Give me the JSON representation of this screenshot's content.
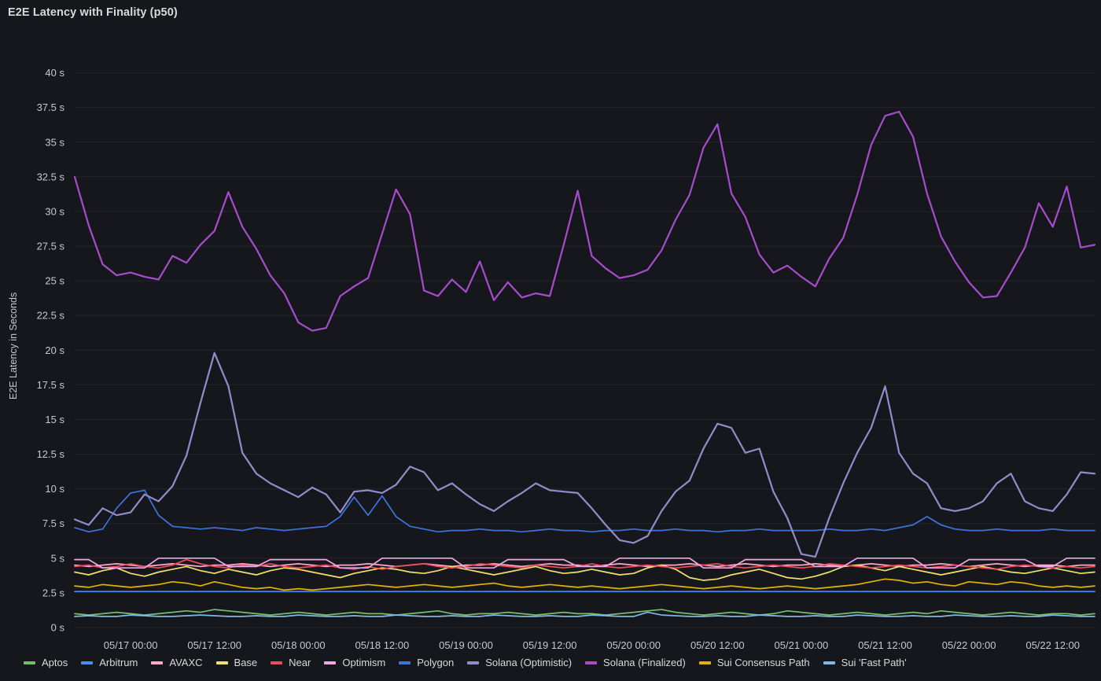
{
  "header": {
    "title": "E2E Latency with Finality (p50)"
  },
  "colors": {
    "background": "#16171d",
    "title_text": "#d8d9da",
    "axis_text": "#c3c8d2",
    "grid": "rgba(204,204,220,0.08)",
    "legend_text": "#d8d9da"
  },
  "chart_data": {
    "type": "line",
    "title": "E2E Latency with Finality (p50)",
    "xlabel": "",
    "ylabel": "E2E Latency in Seconds",
    "ylim": [
      0,
      41
    ],
    "grid": "horizontal-only",
    "legend_position": "bottom",
    "yticks": [
      {
        "value": 0,
        "label": "0 s"
      },
      {
        "value": 2.5,
        "label": "2.5 s"
      },
      {
        "value": 5,
        "label": "5 s"
      },
      {
        "value": 7.5,
        "label": "7.5 s"
      },
      {
        "value": 10,
        "label": "10 s"
      },
      {
        "value": 12.5,
        "label": "12.5 s"
      },
      {
        "value": 15,
        "label": "15 s"
      },
      {
        "value": 17.5,
        "label": "17.5 s"
      },
      {
        "value": 20,
        "label": "20 s"
      },
      {
        "value": 22.5,
        "label": "22.5 s"
      },
      {
        "value": 25,
        "label": "25 s"
      },
      {
        "value": 27.5,
        "label": "27.5 s"
      },
      {
        "value": 30,
        "label": "30 s"
      },
      {
        "value": 32.5,
        "label": "32.5 s"
      },
      {
        "value": 35,
        "label": "35 s"
      },
      {
        "value": 37.5,
        "label": "37.5 s"
      },
      {
        "value": 40,
        "label": "40 s"
      }
    ],
    "x": {
      "start_hour": 0,
      "step_hours": 2,
      "count": 74,
      "range_hours": [
        0,
        146
      ]
    },
    "xticks": [
      {
        "hour": 8,
        "label": "05/17 00:00"
      },
      {
        "hour": 20,
        "label": "05/17 12:00"
      },
      {
        "hour": 32,
        "label": "05/18 00:00"
      },
      {
        "hour": 44,
        "label": "05/18 12:00"
      },
      {
        "hour": 56,
        "label": "05/19 00:00"
      },
      {
        "hour": 68,
        "label": "05/19 12:00"
      },
      {
        "hour": 80,
        "label": "05/20 00:00"
      },
      {
        "hour": 92,
        "label": "05/20 12:00"
      },
      {
        "hour": 104,
        "label": "05/21 00:00"
      },
      {
        "hour": 116,
        "label": "05/21 12:00"
      },
      {
        "hour": 128,
        "label": "05/22 00:00"
      },
      {
        "hour": 140,
        "label": "05/22 12:00"
      }
    ],
    "series": [
      {
        "name": "Aptos",
        "color": "#73BF69",
        "values": [
          1.0,
          0.9,
          1.0,
          1.1,
          1.0,
          0.9,
          1.0,
          1.1,
          1.2,
          1.1,
          1.3,
          1.2,
          1.1,
          1.0,
          0.9,
          1.0,
          1.1,
          1.0,
          0.9,
          1.0,
          1.1,
          1.0,
          1.0,
          0.9,
          1.0,
          1.1,
          1.2,
          1.0,
          0.9,
          1.0,
          1.0,
          1.1,
          1.0,
          0.9,
          1.0,
          1.1,
          1.0,
          1.0,
          0.9,
          1.0,
          1.1,
          1.2,
          1.3,
          1.1,
          1.0,
          0.9,
          1.0,
          1.1,
          1.0,
          0.9,
          1.0,
          1.2,
          1.1,
          1.0,
          0.9,
          1.0,
          1.1,
          1.0,
          0.9,
          1.0,
          1.1,
          1.0,
          1.2,
          1.1,
          1.0,
          0.9,
          1.0,
          1.1,
          1.0,
          0.9,
          1.0,
          1.0,
          0.9,
          1.0
        ]
      },
      {
        "name": "Arbitrum",
        "color": "#4E8BF0",
        "values": [
          2.6,
          2.6,
          2.6,
          2.6,
          2.6,
          2.6,
          2.6,
          2.6,
          2.6,
          2.6,
          2.6,
          2.6,
          2.6,
          2.6,
          2.6,
          2.6,
          2.6,
          2.6,
          2.6,
          2.6,
          2.6,
          2.6,
          2.6,
          2.6,
          2.6,
          2.6,
          2.6,
          2.6,
          2.6,
          2.6,
          2.6,
          2.6,
          2.6,
          2.6,
          2.6,
          2.6,
          2.6,
          2.6,
          2.6,
          2.6,
          2.6,
          2.6,
          2.6,
          2.6,
          2.6,
          2.6,
          2.6,
          2.6,
          2.6,
          2.6,
          2.6,
          2.6,
          2.6,
          2.6,
          2.6,
          2.6,
          2.6,
          2.6,
          2.6,
          2.6,
          2.6,
          2.6,
          2.6,
          2.6,
          2.6,
          2.6,
          2.6,
          2.6,
          2.6,
          2.6,
          2.6,
          2.6,
          2.6,
          2.6
        ]
      },
      {
        "name": "AVAXC",
        "color": "#FFA8C9",
        "values": [
          4.5,
          4.4,
          4.5,
          4.6,
          4.5,
          4.4,
          4.5,
          4.6,
          4.5,
          4.4,
          4.5,
          4.5,
          4.6,
          4.5,
          4.4,
          4.5,
          4.6,
          4.5,
          4.4,
          4.5,
          4.5,
          4.6,
          4.5,
          4.4,
          4.5,
          4.6,
          4.5,
          4.4,
          4.5,
          4.5,
          4.6,
          4.5,
          4.4,
          4.5,
          4.6,
          4.5,
          4.5,
          4.4,
          4.5,
          4.6,
          4.5,
          4.4,
          4.5,
          4.5,
          4.6,
          4.5,
          4.4,
          4.5,
          4.6,
          4.5,
          4.4,
          4.5,
          4.5,
          4.6,
          4.5,
          4.4,
          4.5,
          4.6,
          4.5,
          4.4,
          4.5,
          4.5,
          4.6,
          4.5,
          4.4,
          4.5,
          4.6,
          4.5,
          4.4,
          4.5,
          4.5,
          4.4,
          4.5,
          4.5
        ]
      },
      {
        "name": "Base",
        "color": "#EFE36A",
        "values": [
          4.0,
          3.8,
          4.1,
          4.3,
          3.9,
          3.7,
          4.0,
          4.2,
          4.4,
          4.1,
          3.9,
          4.2,
          4.0,
          3.8,
          4.1,
          4.3,
          4.2,
          4.0,
          3.8,
          3.6,
          3.9,
          4.1,
          4.3,
          4.2,
          4.0,
          3.9,
          4.1,
          4.4,
          4.2,
          4.0,
          3.8,
          4.0,
          4.2,
          4.4,
          4.1,
          3.9,
          4.0,
          4.2,
          4.0,
          3.8,
          3.9,
          4.3,
          4.5,
          4.2,
          3.6,
          3.4,
          3.5,
          3.8,
          4.0,
          4.2,
          3.9,
          3.6,
          3.5,
          3.7,
          4.0,
          4.4,
          4.5,
          4.3,
          4.1,
          4.4,
          4.2,
          4.0,
          3.8,
          4.0,
          4.2,
          4.4,
          4.2,
          4.0,
          3.9,
          4.1,
          4.3,
          4.1,
          3.9,
          4.0
        ]
      },
      {
        "name": "Near",
        "color": "#F2495C",
        "values": [
          4.4,
          4.5,
          4.3,
          4.4,
          4.6,
          4.4,
          4.3,
          4.5,
          4.9,
          4.6,
          4.4,
          4.3,
          4.5,
          4.4,
          4.6,
          4.4,
          4.3,
          4.4,
          4.5,
          4.3,
          4.2,
          4.4,
          4.2,
          4.4,
          4.5,
          4.6,
          4.4,
          4.3,
          4.4,
          4.6,
          4.5,
          4.4,
          4.3,
          4.5,
          4.4,
          4.3,
          4.4,
          4.6,
          4.4,
          4.3,
          4.4,
          4.5,
          4.4,
          4.3,
          4.4,
          4.5,
          4.6,
          4.4,
          4.3,
          4.4,
          4.5,
          4.4,
          4.3,
          4.4,
          4.6,
          4.5,
          4.4,
          4.3,
          4.4,
          4.5,
          4.4,
          4.3,
          4.4,
          4.5,
          4.4,
          4.3,
          4.2,
          4.4,
          4.5,
          4.4,
          4.3,
          4.4,
          4.3,
          4.4
        ]
      },
      {
        "name": "Optimism",
        "color": "#F0A8E4",
        "values": [
          4.9,
          4.9,
          4.3,
          4.3,
          4.3,
          4.3,
          5.0,
          5.0,
          5.0,
          5.0,
          5.0,
          4.4,
          4.4,
          4.4,
          4.9,
          4.9,
          4.9,
          4.9,
          4.9,
          4.3,
          4.3,
          4.3,
          5.0,
          5.0,
          5.0,
          5.0,
          5.0,
          5.0,
          4.3,
          4.3,
          4.3,
          4.9,
          4.9,
          4.9,
          4.9,
          4.9,
          4.4,
          4.4,
          4.4,
          5.0,
          5.0,
          5.0,
          5.0,
          5.0,
          5.0,
          4.3,
          4.3,
          4.3,
          4.9,
          4.9,
          4.9,
          4.9,
          4.9,
          4.4,
          4.4,
          4.4,
          5.0,
          5.0,
          5.0,
          5.0,
          5.0,
          4.3,
          4.3,
          4.3,
          4.9,
          4.9,
          4.9,
          4.9,
          4.9,
          4.4,
          4.4,
          5.0,
          5.0,
          5.0
        ]
      },
      {
        "name": "Polygon",
        "color": "#3D74D9",
        "values": [
          7.2,
          6.9,
          7.1,
          8.6,
          9.7,
          9.9,
          8.1,
          7.3,
          7.2,
          7.1,
          7.2,
          7.1,
          7.0,
          7.2,
          7.1,
          7.0,
          7.1,
          7.2,
          7.3,
          8.0,
          9.4,
          8.1,
          9.5,
          8.0,
          7.3,
          7.1,
          6.9,
          7.0,
          7.0,
          7.1,
          7.0,
          7.0,
          6.9,
          7.0,
          7.1,
          7.0,
          7.0,
          6.9,
          7.0,
          7.0,
          7.1,
          7.0,
          7.0,
          7.1,
          7.0,
          7.0,
          6.9,
          7.0,
          7.0,
          7.1,
          7.0,
          7.0,
          7.0,
          7.0,
          7.1,
          7.0,
          7.0,
          7.1,
          7.0,
          7.2,
          7.4,
          8.0,
          7.4,
          7.1,
          7.0,
          7.0,
          7.1,
          7.0,
          7.0,
          7.0,
          7.1,
          7.0,
          7.0,
          7.0
        ]
      },
      {
        "name": "Solana (Optimistic)",
        "color": "#948BC9",
        "values": [
          7.8,
          7.4,
          8.6,
          8.1,
          8.3,
          9.6,
          9.1,
          10.2,
          12.4,
          16.2,
          19.8,
          17.4,
          12.6,
          11.1,
          10.4,
          9.9,
          9.4,
          10.1,
          9.6,
          8.3,
          9.8,
          9.9,
          9.7,
          10.3,
          11.6,
          11.2,
          9.9,
          10.4,
          9.6,
          8.9,
          8.4,
          9.1,
          9.7,
          10.4,
          9.9,
          9.8,
          9.7,
          8.6,
          7.4,
          6.3,
          6.1,
          6.6,
          8.4,
          9.8,
          10.6,
          12.9,
          14.7,
          14.4,
          12.6,
          12.9,
          9.8,
          7.9,
          5.3,
          5.1,
          7.9,
          10.4,
          12.6,
          14.4,
          17.4,
          12.6,
          11.1,
          10.4,
          8.6,
          8.4,
          8.6,
          9.1,
          10.4,
          11.1,
          9.1,
          8.6,
          8.4,
          9.6,
          11.2,
          11.1
        ]
      },
      {
        "name": "Solana (Finalized)",
        "color": "#A64CCC",
        "values": [
          32.5,
          29.0,
          26.2,
          25.4,
          25.6,
          25.3,
          25.1,
          26.8,
          26.3,
          27.6,
          28.6,
          31.4,
          28.9,
          27.3,
          25.4,
          24.1,
          22.0,
          21.4,
          21.6,
          23.9,
          24.6,
          25.2,
          28.4,
          31.6,
          29.8,
          24.3,
          23.9,
          25.1,
          24.2,
          26.4,
          23.6,
          24.9,
          23.8,
          24.1,
          23.9,
          27.6,
          31.5,
          26.8,
          25.9,
          25.2,
          25.4,
          25.8,
          27.2,
          29.4,
          31.2,
          34.6,
          36.3,
          31.3,
          29.6,
          26.9,
          25.6,
          26.1,
          25.3,
          24.6,
          26.6,
          28.1,
          31.2,
          34.8,
          36.9,
          37.2,
          35.4,
          31.3,
          28.2,
          26.4,
          24.9,
          23.8,
          23.9,
          25.6,
          27.4,
          30.6,
          28.9,
          31.8,
          27.4,
          27.6
        ]
      },
      {
        "name": "Sui Consensus Path",
        "color": "#E0B400",
        "values": [
          3.0,
          2.9,
          3.1,
          3.0,
          2.9,
          3.0,
          3.1,
          3.3,
          3.2,
          3.0,
          3.3,
          3.1,
          2.9,
          2.8,
          2.9,
          2.7,
          2.8,
          2.7,
          2.8,
          2.9,
          3.0,
          3.1,
          3.0,
          2.9,
          3.0,
          3.1,
          3.0,
          2.9,
          3.0,
          3.1,
          3.2,
          3.0,
          2.9,
          3.0,
          3.1,
          3.0,
          2.9,
          3.0,
          2.9,
          2.8,
          2.9,
          3.0,
          3.1,
          3.0,
          2.9,
          2.8,
          2.9,
          3.0,
          2.9,
          2.8,
          2.9,
          3.0,
          2.9,
          2.8,
          2.9,
          3.0,
          3.1,
          3.3,
          3.5,
          3.4,
          3.2,
          3.3,
          3.1,
          3.0,
          3.3,
          3.2,
          3.1,
          3.3,
          3.2,
          3.0,
          2.9,
          3.0,
          2.9,
          3.0
        ]
      },
      {
        "name": "Sui 'Fast Path'",
        "color": "#7FB8E8",
        "values": [
          0.8,
          0.85,
          0.8,
          0.8,
          0.9,
          0.85,
          0.8,
          0.8,
          0.85,
          0.9,
          0.85,
          0.8,
          0.8,
          0.85,
          0.8,
          0.8,
          0.9,
          0.85,
          0.8,
          0.8,
          0.85,
          0.8,
          0.8,
          0.9,
          0.85,
          0.8,
          0.8,
          0.85,
          0.8,
          0.8,
          0.9,
          0.85,
          0.8,
          0.8,
          0.85,
          0.8,
          0.8,
          0.9,
          0.85,
          0.8,
          0.8,
          1.1,
          0.9,
          0.85,
          0.8,
          0.8,
          0.85,
          0.8,
          0.8,
          0.9,
          0.85,
          0.8,
          0.8,
          0.85,
          0.8,
          0.8,
          0.9,
          0.85,
          0.8,
          0.8,
          0.85,
          0.8,
          0.8,
          0.9,
          0.85,
          0.8,
          0.8,
          0.85,
          0.8,
          0.8,
          0.9,
          0.85,
          0.8,
          0.8
        ]
      }
    ]
  }
}
